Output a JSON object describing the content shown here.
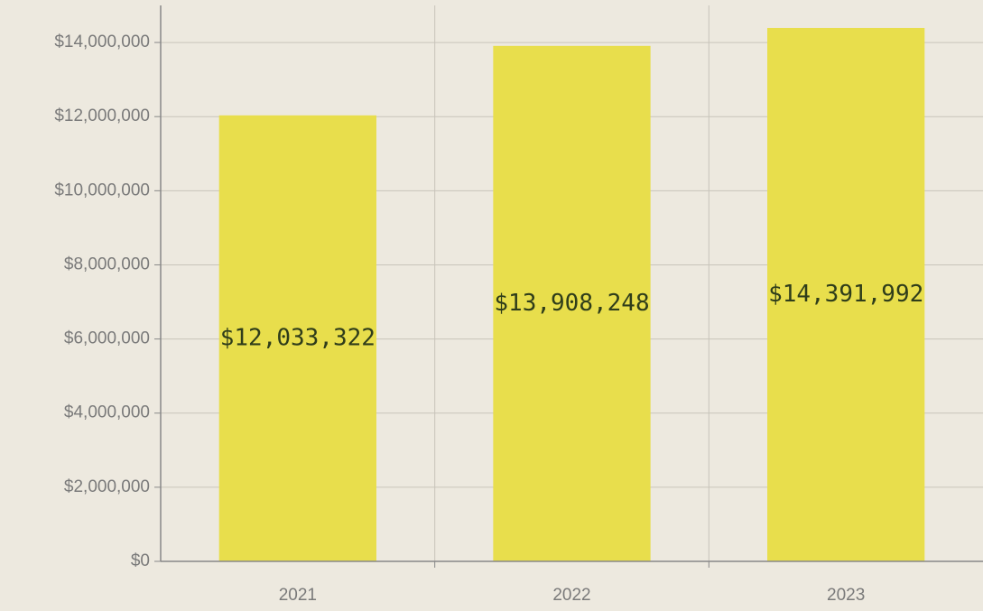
{
  "chart_data": {
    "type": "bar",
    "categories": [
      "2021",
      "2022",
      "2023"
    ],
    "values": [
      12033322,
      13908248,
      14391992
    ],
    "value_labels": [
      "$12,033,322",
      "$13,908,248",
      "$14,391,992"
    ],
    "color": "#e8de4c",
    "ylim": [
      0,
      15000000
    ],
    "yticks": [
      {
        "value": 0,
        "label": "$0"
      },
      {
        "value": 2000000,
        "label": "$2,000,000"
      },
      {
        "value": 4000000,
        "label": "$4,000,000"
      },
      {
        "value": 6000000,
        "label": "$6,000,000"
      },
      {
        "value": 8000000,
        "label": "$8,000,000"
      },
      {
        "value": 10000000,
        "label": "$10,000,000"
      },
      {
        "value": 12000000,
        "label": "$12,000,000"
      },
      {
        "value": 14000000,
        "label": "$14,000,000"
      }
    ],
    "grid": true
  }
}
